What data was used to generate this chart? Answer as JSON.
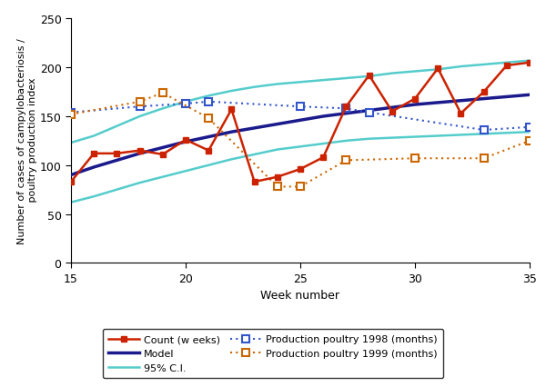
{
  "weeks": [
    15,
    16,
    17,
    18,
    19,
    20,
    21,
    22,
    23,
    24,
    25,
    26,
    27,
    28,
    29,
    30,
    31,
    32,
    33,
    34,
    35
  ],
  "count_weeks": [
    83,
    112,
    112,
    115,
    111,
    126,
    115,
    157,
    83,
    88,
    96,
    108,
    160,
    192,
    155,
    168,
    199,
    153,
    175,
    202,
    205
  ],
  "model": [
    90,
    98,
    105,
    112,
    118,
    124,
    129,
    134,
    138,
    142,
    146,
    150,
    153,
    156,
    159,
    162,
    164,
    166,
    168,
    170,
    172
  ],
  "ci_upper": [
    123,
    130,
    140,
    150,
    158,
    165,
    171,
    176,
    180,
    183,
    185,
    187,
    189,
    191,
    194,
    196,
    198,
    201,
    203,
    205,
    207
  ],
  "ci_lower": [
    62,
    68,
    75,
    82,
    88,
    94,
    100,
    106,
    111,
    116,
    119,
    122,
    125,
    127,
    128,
    129,
    130,
    131,
    132,
    133,
    134
  ],
  "prod1998_weeks": [
    15,
    18,
    20,
    21,
    25,
    27,
    28,
    33,
    35
  ],
  "prod1998_vals": [
    154,
    160,
    163,
    165,
    160,
    158,
    154,
    136,
    139
  ],
  "prod1999_weeks": [
    15,
    18,
    19,
    21,
    24,
    25,
    27,
    30,
    33,
    35
  ],
  "prod1999_vals": [
    152,
    165,
    174,
    148,
    78,
    78,
    105,
    107,
    107,
    125
  ],
  "count_color": "#cc2200",
  "model_color": "#1a1a8c",
  "ci_color": "#55cccc",
  "prod1998_color": "#3355cc",
  "prod1999_color": "#cc6600",
  "xlim": [
    15,
    35
  ],
  "ylim": [
    0,
    250
  ],
  "xticks": [
    15,
    20,
    25,
    30,
    35
  ],
  "yticks": [
    0,
    50,
    100,
    150,
    200,
    250
  ],
  "xlabel": "Week number",
  "ylabel": "Number of cases of campylobacteriosis /\n poultry production index",
  "legend_count": "Count (w eeks)",
  "legend_model": "Model",
  "legend_ci": "95% C.I.",
  "legend_prod1998": "Production poultry 1998 (months)",
  "legend_prod1999": "Production poultry 1999 (months)"
}
